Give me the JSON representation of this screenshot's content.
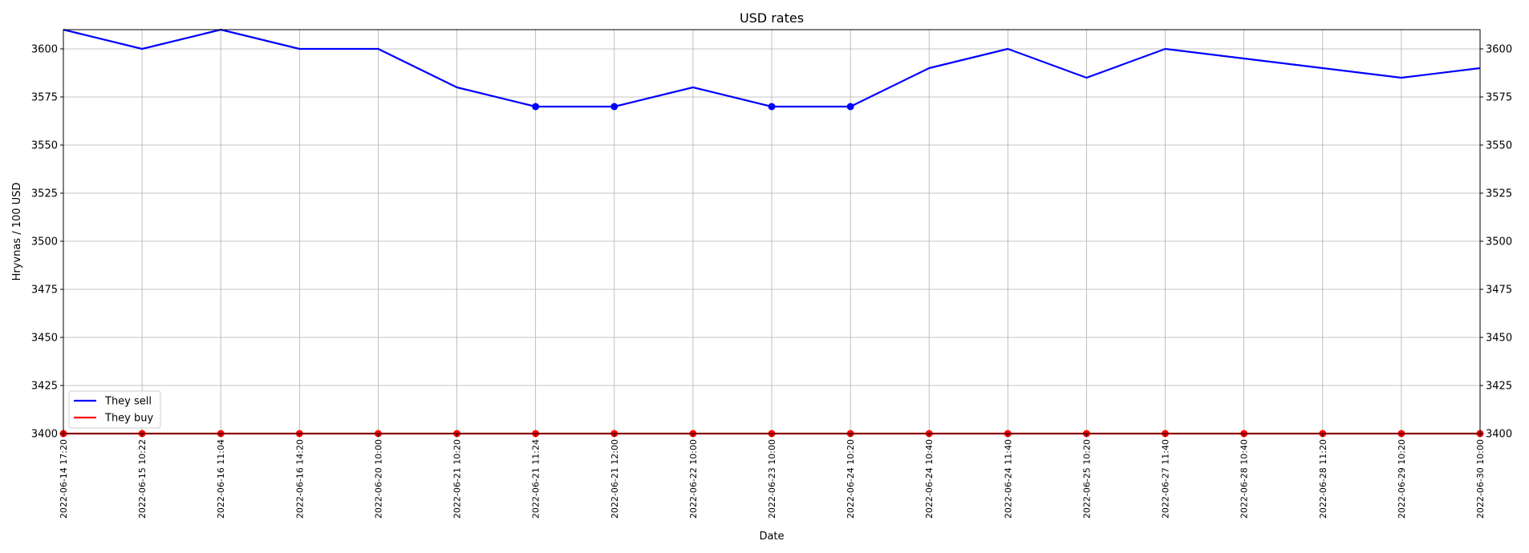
{
  "chart_data": {
    "type": "line",
    "title": "USD rates",
    "xlabel": "Date",
    "ylabel": "Hryvnas / 100 USD",
    "ylim": [
      3400,
      3610
    ],
    "yticks": [
      3400,
      3425,
      3450,
      3475,
      3500,
      3525,
      3550,
      3575,
      3600
    ],
    "grid": true,
    "right_axis": true,
    "legend_position": "lower-left",
    "categories": [
      "2022-06-14 17:20",
      "2022-06-15 10:22",
      "2022-06-16 11:04",
      "2022-06-16 14:20",
      "2022-06-20 10:00",
      "2022-06-21 10:20",
      "2022-06-21 11:24",
      "2022-06-21 12:00",
      "2022-06-22 10:00",
      "2022-06-23 10:00",
      "2022-06-24 10:20",
      "2022-06-24 10:40",
      "2022-06-24 11:40",
      "2022-06-25 10:20",
      "2022-06-27 11:40",
      "2022-06-28 10:40",
      "2022-06-28 11:20",
      "2022-06-29 10:20",
      "2022-06-30 10:00"
    ],
    "series": [
      {
        "name": "They sell",
        "color": "#0000ff",
        "values": [
          3610,
          3600,
          3610,
          3600,
          3600,
          3580,
          3570,
          3570,
          3580,
          3570,
          3570,
          3590,
          3600,
          3585,
          3600,
          3595,
          3590,
          3585,
          3590
        ],
        "markers": [
          6,
          7,
          9,
          10
        ]
      },
      {
        "name": "They buy",
        "color": "#ff0000",
        "values": [
          3400,
          3400,
          3400,
          3400,
          3400,
          3400,
          3400,
          3400,
          3400,
          3400,
          3400,
          3400,
          3400,
          3400,
          3400,
          3400,
          3400,
          3400,
          3400
        ],
        "markers": [
          0,
          1,
          2,
          3,
          4,
          5,
          6,
          7,
          8,
          9,
          10,
          11,
          12,
          13,
          14,
          15,
          16,
          17,
          18
        ]
      }
    ]
  }
}
